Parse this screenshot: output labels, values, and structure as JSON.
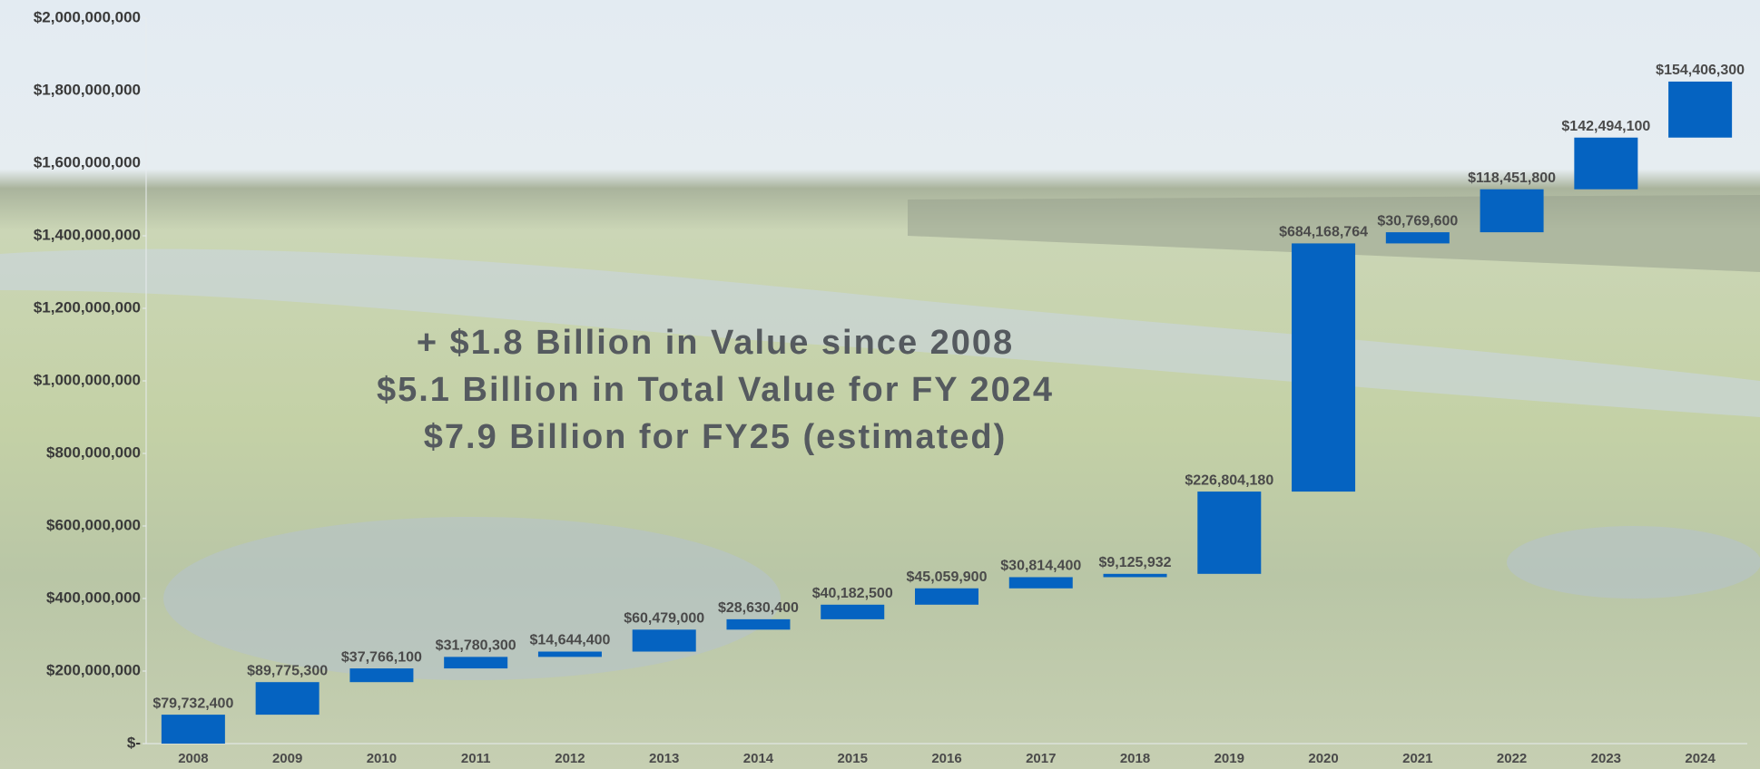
{
  "chart_data": {
    "type": "waterfall",
    "categories": [
      "2008",
      "2009",
      "2010",
      "2011",
      "2012",
      "2013",
      "2014",
      "2015",
      "2016",
      "2017",
      "2018",
      "2019",
      "2020",
      "2021",
      "2022",
      "2023",
      "2024"
    ],
    "values": [
      79732400,
      89775300,
      37766100,
      31780300,
      14644400,
      60479000,
      28630400,
      40182500,
      45059900,
      30814400,
      9125932,
      226804180,
      684168764,
      30769600,
      118451800,
      142494100,
      154406300
    ],
    "value_labels": [
      "$79,732,400",
      "$89,775,300",
      "$37,766,100",
      "$31,780,300",
      "$14,644,400",
      "$60,479,000",
      "$28,630,400",
      "$40,182,500",
      "$45,059,900",
      "$30,814,400",
      "$9,125,932",
      "$226,804,180",
      "$684,168,764",
      "$30,769,600",
      "$118,451,800",
      "$142,494,100",
      "$154,406,300"
    ],
    "color": "#0563c1",
    "ylim": [
      0,
      2000000000
    ],
    "yticks": [
      {
        "value": 0,
        "label": "$-"
      },
      {
        "value": 200000000,
        "label": "$200,000,000"
      },
      {
        "value": 400000000,
        "label": "$400,000,000"
      },
      {
        "value": 600000000,
        "label": "$600,000,000"
      },
      {
        "value": 800000000,
        "label": "$800,000,000"
      },
      {
        "value": 1000000000,
        "label": "$1,000,000,000"
      },
      {
        "value": 1200000000,
        "label": "$1,200,000,000"
      },
      {
        "value": 1400000000,
        "label": "$1,400,000,000"
      },
      {
        "value": 1600000000,
        "label": "$1,600,000,000"
      },
      {
        "value": 1800000000,
        "label": "$1,800,000,000"
      },
      {
        "value": 2000000000,
        "label": "$2,000,000,000"
      }
    ],
    "annotations": [
      "+ $1.8 Billion in Value since 2008",
      "$5.1 Billion in Total Value for FY 2024",
      "$7.9 Billion for FY25 (estimated)"
    ]
  }
}
